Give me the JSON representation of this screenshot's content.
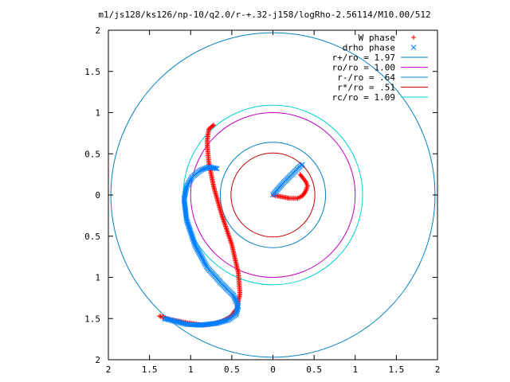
{
  "chart_data": {
    "type": "scatter",
    "title": "m1/js128/ks126/np-10/q2.0/r-+.32-j158/logRho-2.56114/M10.00/512",
    "xlim": [
      -2,
      2
    ],
    "ylim": [
      -2,
      2
    ],
    "grid": false,
    "legend_placement": "top-right",
    "x_ticks": [
      {
        "value": -2,
        "label": "2"
      },
      {
        "value": -1.5,
        "label": "1.5"
      },
      {
        "value": -1,
        "label": "1"
      },
      {
        "value": -0.5,
        "label": "0.5"
      },
      {
        "value": 0,
        "label": "0"
      },
      {
        "value": 0.5,
        "label": "0.5"
      },
      {
        "value": 1,
        "label": "1"
      },
      {
        "value": 1.5,
        "label": "1.5"
      },
      {
        "value": 2,
        "label": "2"
      }
    ],
    "y_ticks": [
      {
        "value": 2,
        "label": "2"
      },
      {
        "value": 1.5,
        "label": "1.5"
      },
      {
        "value": 1,
        "label": "1"
      },
      {
        "value": 0.5,
        "label": "0.5"
      },
      {
        "value": 0,
        "label": "0"
      },
      {
        "value": -0.5,
        "label": "0.5"
      },
      {
        "value": -1,
        "label": "1"
      },
      {
        "value": -1.5,
        "label": "1.5"
      },
      {
        "value": -2,
        "label": "2"
      }
    ],
    "marker_series": [
      {
        "name": "W phase",
        "marker": "plus",
        "color": "#ff0000",
        "segments": [
          [
            [
              0.0,
              0.0
            ],
            [
              0.1,
              -0.02
            ],
            [
              0.2,
              -0.04
            ],
            [
              0.3,
              -0.04
            ],
            [
              0.36,
              -0.01
            ],
            [
              0.4,
              0.05
            ],
            [
              0.42,
              0.11
            ],
            [
              0.4,
              0.16
            ],
            [
              0.37,
              0.2
            ],
            [
              0.33,
              0.25
            ]
          ],
          [
            [
              -0.72,
              0.85
            ],
            [
              -0.78,
              0.8
            ],
            [
              -0.8,
              0.65
            ],
            [
              -0.78,
              0.4
            ],
            [
              -0.72,
              0.1
            ],
            [
              -0.62,
              -0.25
            ],
            [
              -0.5,
              -0.6
            ],
            [
              -0.42,
              -0.95
            ],
            [
              -0.4,
              -1.2
            ],
            [
              -0.44,
              -1.38
            ],
            [
              -0.52,
              -1.48
            ],
            [
              -0.65,
              -1.55
            ],
            [
              -0.85,
              -1.58
            ],
            [
              -1.05,
              -1.55
            ],
            [
              -1.25,
              -1.51
            ],
            [
              -1.38,
              -1.47
            ]
          ]
        ]
      },
      {
        "name": "drho phase",
        "marker": "cross",
        "color": "#0080ff",
        "segments": [
          [
            [
              0.0,
              0.0
            ],
            [
              0.05,
              0.06
            ],
            [
              0.12,
              0.14
            ],
            [
              0.2,
              0.22
            ],
            [
              0.27,
              0.29
            ],
            [
              0.33,
              0.35
            ],
            [
              0.36,
              0.37
            ]
          ],
          [
            [
              -0.68,
              0.32
            ],
            [
              -0.78,
              0.34
            ],
            [
              -0.88,
              0.3
            ],
            [
              -0.98,
              0.22
            ],
            [
              -1.05,
              0.1
            ],
            [
              -1.08,
              -0.05
            ],
            [
              -1.05,
              -0.3
            ],
            [
              -0.95,
              -0.6
            ],
            [
              -0.8,
              -0.88
            ],
            [
              -0.62,
              -1.08
            ],
            [
              -0.48,
              -1.22
            ],
            [
              -0.42,
              -1.35
            ],
            [
              -0.45,
              -1.45
            ],
            [
              -0.55,
              -1.52
            ],
            [
              -0.7,
              -1.56
            ],
            [
              -0.88,
              -1.58
            ],
            [
              -1.05,
              -1.57
            ],
            [
              -1.2,
              -1.53
            ],
            [
              -1.32,
              -1.5
            ]
          ]
        ]
      }
    ],
    "circles": [
      {
        "name": "r+/ro = 1.97",
        "radius": 1.97,
        "color": "#0080c0"
      },
      {
        "name": "ro/ro = 1.00",
        "radius": 1.0,
        "color": "#c000c0"
      },
      {
        "name": "r-/ro = .64",
        "radius": 0.64,
        "color": "#0080c0"
      },
      {
        "name": "r*/ro = .51",
        "radius": 0.51,
        "color": "#c00000"
      },
      {
        "name": "rc/ro = 1.09",
        "radius": 1.09,
        "color": "#00d0d0"
      }
    ]
  }
}
